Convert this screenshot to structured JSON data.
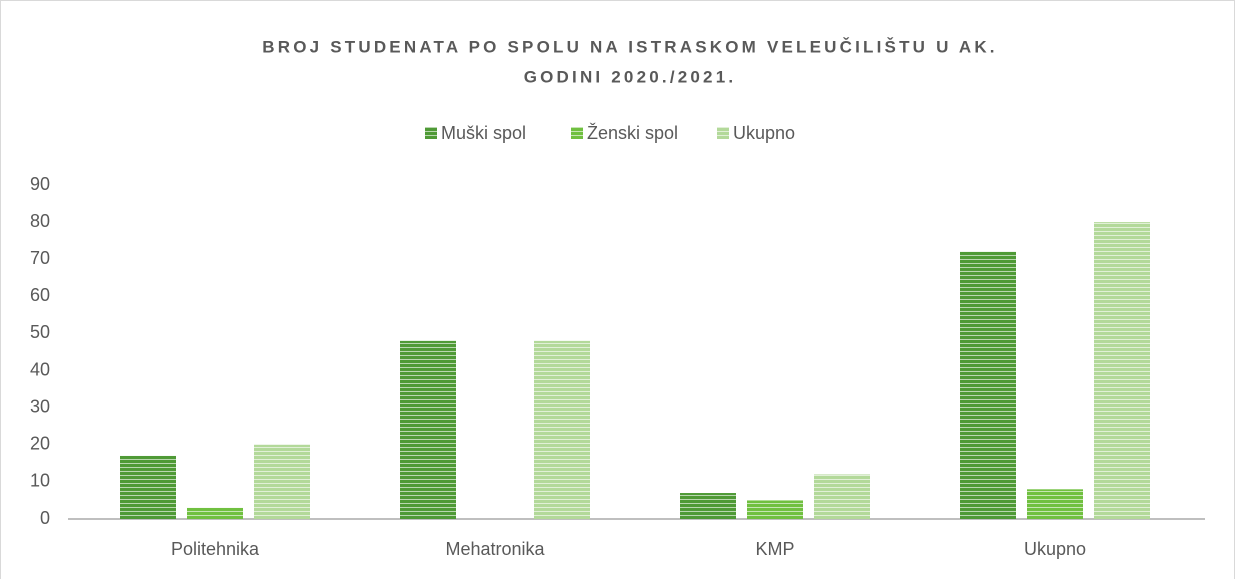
{
  "chart_data": {
    "type": "bar",
    "title": [
      "BROJ STUDENATA PO SPOLU NA ISTRASKOM VELEUČILIŠTU U AK.",
      "GODINI 2020./2021."
    ],
    "categories": [
      "Politehnika",
      "Mehatronika",
      "KMP",
      "Ukupno"
    ],
    "series": [
      {
        "name": "Muški spol",
        "color": "#4f9a36",
        "values": [
          17,
          48,
          7,
          72
        ]
      },
      {
        "name": "Ženski spol",
        "color": "#70c040",
        "values": [
          3,
          0,
          5,
          8
        ]
      },
      {
        "name": "Ukupno",
        "color": "#b3d99a",
        "values": [
          20,
          48,
          12,
          80
        ]
      }
    ],
    "ylim": [
      0,
      90
    ],
    "yticks": [
      0,
      10,
      20,
      30,
      40,
      50,
      60,
      70,
      80,
      90
    ],
    "grid": false,
    "legend": "top"
  }
}
